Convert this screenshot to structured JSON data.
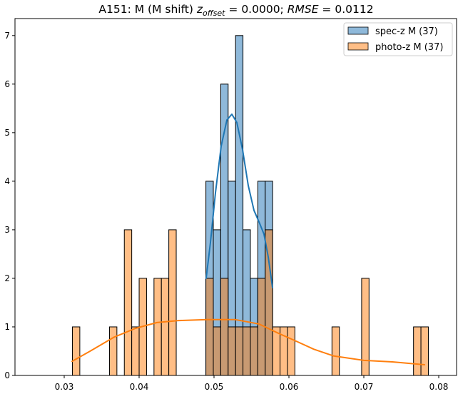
{
  "chart_data": {
    "type": "histogram",
    "title": {
      "prefix": "A151: M (M shift) ",
      "z_symbol": "z",
      "z_subscript": "offset",
      "z_value": " = 0.0000; ",
      "rmse_symbol": "RMSE",
      "rmse_value": " = 0.0112"
    },
    "xlabel": "",
    "ylabel": "",
    "xlim": [
      0.02343,
      0.08238
    ],
    "ylim": [
      0,
      7.35
    ],
    "x_ticks": [
      0.03,
      0.04,
      0.05,
      0.06,
      0.07,
      0.08
    ],
    "x_tick_labels": [
      "0.03",
      "0.04",
      "0.05",
      "0.06",
      "0.07",
      "0.08"
    ],
    "y_ticks": [
      0,
      1,
      2,
      3,
      4,
      5,
      6,
      7
    ],
    "y_tick_labels": [
      "0",
      "1",
      "2",
      "3",
      "4",
      "5",
      "6",
      "7"
    ],
    "grid": false,
    "legend_position": "top-right",
    "bin_start": 0.031095,
    "bin_width": 0.00099,
    "series": [
      {
        "name": "spec-z M (37)",
        "color": "#1f77b4",
        "fill": "#8fb9da",
        "fill_opacity": 1,
        "bins": [
          {
            "index": 18,
            "count": 4
          },
          {
            "index": 19,
            "count": 3
          },
          {
            "index": 20,
            "count": 6
          },
          {
            "index": 21,
            "count": 4
          },
          {
            "index": 22,
            "count": 7
          },
          {
            "index": 23,
            "count": 3
          },
          {
            "index": 24,
            "count": 2
          },
          {
            "index": 25,
            "count": 4
          },
          {
            "index": 26,
            "count": 4
          }
        ],
        "kde": [
          [
            0.04895,
            2.0
          ],
          [
            0.04952,
            2.74
          ],
          [
            0.05019,
            3.76
          ],
          [
            0.05095,
            4.72
          ],
          [
            0.05171,
            5.26
          ],
          [
            0.05238,
            5.38
          ],
          [
            0.05305,
            5.21
          ],
          [
            0.05381,
            4.65
          ],
          [
            0.05457,
            3.91
          ],
          [
            0.05533,
            3.4
          ],
          [
            0.0561,
            3.13
          ],
          [
            0.05667,
            2.91
          ],
          [
            0.05724,
            2.44
          ],
          [
            0.05781,
            1.81
          ]
        ]
      },
      {
        "name": "photo-z M (37)",
        "color": "#ff7f0e",
        "fill": "#ffbe86",
        "fill_opacity": 1,
        "bins": [
          {
            "index": 0,
            "count": 1
          },
          {
            "index": 5,
            "count": 1
          },
          {
            "index": 7,
            "count": 3
          },
          {
            "index": 8,
            "count": 1
          },
          {
            "index": 9,
            "count": 2
          },
          {
            "index": 11,
            "count": 2
          },
          {
            "index": 12,
            "count": 2
          },
          {
            "index": 13,
            "count": 3
          },
          {
            "index": 18,
            "count": 2
          },
          {
            "index": 19,
            "count": 1
          },
          {
            "index": 20,
            "count": 2
          },
          {
            "index": 21,
            "count": 1
          },
          {
            "index": 22,
            "count": 1
          },
          {
            "index": 23,
            "count": 1
          },
          {
            "index": 24,
            "count": 1
          },
          {
            "index": 25,
            "count": 2
          },
          {
            "index": 26,
            "count": 3
          },
          {
            "index": 27,
            "count": 1
          },
          {
            "index": 28,
            "count": 1
          },
          {
            "index": 29,
            "count": 1
          },
          {
            "index": 35,
            "count": 1
          },
          {
            "index": 39,
            "count": 2
          },
          {
            "index": 46,
            "count": 1
          },
          {
            "index": 47,
            "count": 1
          }
        ],
        "kde": [
          [
            0.03105,
            0.29
          ],
          [
            0.0338,
            0.53
          ],
          [
            0.03667,
            0.79
          ],
          [
            0.03952,
            0.97
          ],
          [
            0.04238,
            1.09
          ],
          [
            0.04524,
            1.13
          ],
          [
            0.04905,
            1.15
          ],
          [
            0.05286,
            1.15
          ],
          [
            0.056,
            1.06
          ],
          [
            0.05857,
            0.87
          ],
          [
            0.06076,
            0.72
          ],
          [
            0.06333,
            0.54
          ],
          [
            0.066,
            0.4
          ],
          [
            0.07,
            0.31
          ],
          [
            0.07381,
            0.28
          ],
          [
            0.0781,
            0.22
          ]
        ]
      }
    ],
    "overlap_fill": "#c89a72"
  }
}
